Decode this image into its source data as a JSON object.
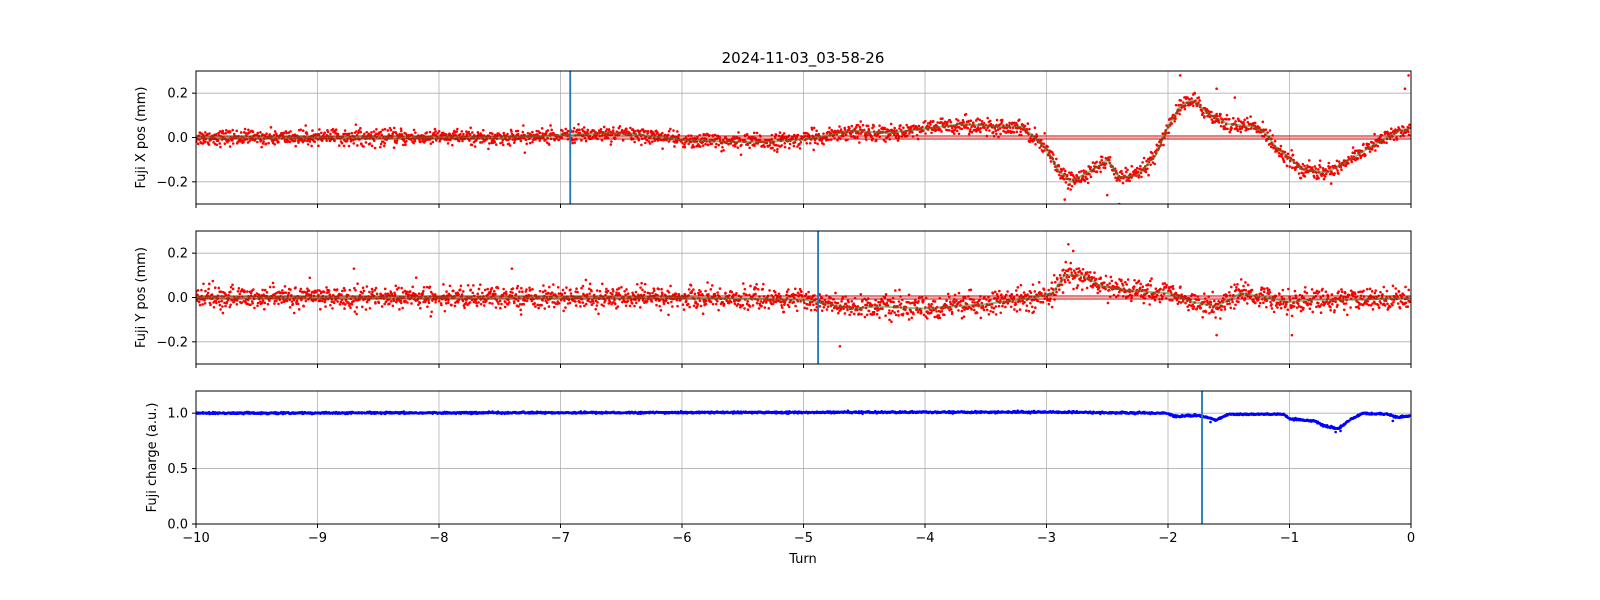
{
  "figure": {
    "title": "2024-11-03_03-58-26",
    "xlabel": "Turn"
  },
  "chart_data": [
    {
      "type": "scatter",
      "name": "x-panel",
      "ylabel": "Fuji X pos (mm)",
      "xlim": [
        -10,
        0
      ],
      "ylim": [
        -0.3,
        0.3
      ],
      "xticks": [
        -10,
        -9,
        -8,
        -7,
        -6,
        -5,
        -4,
        -3,
        -2,
        -1,
        0
      ],
      "yticks": [
        -0.2,
        0.0,
        0.2
      ],
      "grid": true,
      "marker_line": -6.92,
      "scatter_color": "#ff0000",
      "smooth_color": "#2e8b2e",
      "baseline_color": "#cc0000",
      "marker_color": "#1f77b4",
      "noise": 0.018,
      "baseline": 0.0,
      "trend": [
        [
          -10,
          0.0
        ],
        [
          -7.5,
          0.0
        ],
        [
          -7.0,
          0.01
        ],
        [
          -6.6,
          0.02
        ],
        [
          -6.3,
          0.01
        ],
        [
          -6.0,
          -0.01
        ],
        [
          -5.6,
          -0.02
        ],
        [
          -5.3,
          -0.02
        ],
        [
          -5.0,
          -0.01
        ],
        [
          -4.8,
          0.01
        ],
        [
          -4.6,
          0.03
        ],
        [
          -4.3,
          0.02
        ],
        [
          -4.0,
          0.04
        ],
        [
          -3.7,
          0.06
        ],
        [
          -3.4,
          0.05
        ],
        [
          -3.2,
          0.05
        ],
        [
          -3.0,
          -0.05
        ],
        [
          -2.9,
          -0.15
        ],
        [
          -2.8,
          -0.2
        ],
        [
          -2.6,
          -0.14
        ],
        [
          -2.5,
          -0.1
        ],
        [
          -2.4,
          -0.18
        ],
        [
          -2.25,
          -0.17
        ],
        [
          -2.1,
          -0.08
        ],
        [
          -2.0,
          0.05
        ],
        [
          -1.9,
          0.14
        ],
        [
          -1.8,
          0.17
        ],
        [
          -1.65,
          0.1
        ],
        [
          -1.5,
          0.06
        ],
        [
          -1.3,
          0.05
        ],
        [
          -1.2,
          0.02
        ],
        [
          -1.1,
          -0.05
        ],
        [
          -0.9,
          -0.14
        ],
        [
          -0.7,
          -0.16
        ],
        [
          -0.5,
          -0.1
        ],
        [
          -0.3,
          -0.03
        ],
        [
          -0.1,
          0.03
        ],
        [
          0,
          0.04
        ]
      ],
      "outliers": [
        [
          -2.85,
          -0.28
        ],
        [
          -2.4,
          -0.3
        ],
        [
          -1.9,
          0.28
        ],
        [
          -1.6,
          0.22
        ],
        [
          -0.02,
          0.28
        ],
        [
          -0.05,
          0.22
        ],
        [
          -2.5,
          -0.26
        ],
        [
          -1.45,
          0.18
        ]
      ]
    },
    {
      "type": "scatter",
      "name": "y-panel",
      "ylabel": "Fuji Y pos (mm)",
      "xlim": [
        -10,
        0
      ],
      "ylim": [
        -0.3,
        0.3
      ],
      "xticks": [
        -10,
        -9,
        -8,
        -7,
        -6,
        -5,
        -4,
        -3,
        -2,
        -1,
        0
      ],
      "yticks": [
        -0.2,
        0.0,
        0.2
      ],
      "grid": true,
      "marker_line": -4.88,
      "scatter_color": "#ff0000",
      "smooth_color": "#2e8b2e",
      "baseline_color": "#cc0000",
      "marker_color": "#1f77b4",
      "noise": 0.025,
      "baseline": 0.0,
      "trend": [
        [
          -10,
          0.0
        ],
        [
          -6.0,
          0.0
        ],
        [
          -5.0,
          -0.01
        ],
        [
          -4.8,
          -0.03
        ],
        [
          -4.6,
          -0.05
        ],
        [
          -4.4,
          -0.04
        ],
        [
          -4.0,
          -0.05
        ],
        [
          -3.5,
          -0.03
        ],
        [
          -3.1,
          0.0
        ],
        [
          -2.95,
          0.02
        ],
        [
          -2.85,
          0.1
        ],
        [
          -2.7,
          0.1
        ],
        [
          -2.55,
          0.05
        ],
        [
          -2.3,
          0.03
        ],
        [
          -2.0,
          0.02
        ],
        [
          -1.8,
          -0.02
        ],
        [
          -1.6,
          -0.04
        ],
        [
          -1.4,
          0.02
        ],
        [
          -1.2,
          0.0
        ],
        [
          -1.0,
          -0.02
        ],
        [
          -0.8,
          -0.01
        ],
        [
          -0.4,
          -0.01
        ],
        [
          0,
          0.0
        ]
      ],
      "outliers": [
        [
          -2.82,
          0.24
        ],
        [
          -2.78,
          0.21
        ],
        [
          -4.7,
          -0.22
        ],
        [
          -0.98,
          -0.17
        ],
        [
          -7.4,
          0.13
        ],
        [
          -8.7,
          0.13
        ],
        [
          -1.6,
          -0.17
        ]
      ]
    },
    {
      "type": "scatter",
      "name": "charge-panel",
      "ylabel": "Fuji charge (a.u.)",
      "xlim": [
        -10,
        0
      ],
      "ylim": [
        0.0,
        1.2
      ],
      "xticks": [
        -10,
        -9,
        -8,
        -7,
        -6,
        -5,
        -4,
        -3,
        -2,
        -1,
        0
      ],
      "yticks": [
        0.0,
        0.5,
        1.0
      ],
      "grid": true,
      "marker_line": -1.72,
      "scatter_color": "#0000ff",
      "noise": 0.004,
      "trend": [
        [
          -10,
          1.0
        ],
        [
          -3.0,
          1.01
        ],
        [
          -2.0,
          1.0
        ],
        [
          -1.95,
          0.97
        ],
        [
          -1.75,
          0.98
        ],
        [
          -1.6,
          0.94
        ],
        [
          -1.5,
          0.99
        ],
        [
          -1.05,
          0.99
        ],
        [
          -1.0,
          0.95
        ],
        [
          -0.8,
          0.93
        ],
        [
          -0.7,
          0.88
        ],
        [
          -0.6,
          0.86
        ],
        [
          -0.5,
          0.94
        ],
        [
          -0.4,
          1.0
        ],
        [
          -0.2,
          0.99
        ],
        [
          -0.1,
          0.96
        ],
        [
          0,
          0.98
        ]
      ],
      "outliers": [
        [
          -1.65,
          0.92
        ],
        [
          -0.62,
          0.83
        ],
        [
          -0.58,
          0.84
        ],
        [
          -0.15,
          0.93
        ]
      ]
    }
  ]
}
